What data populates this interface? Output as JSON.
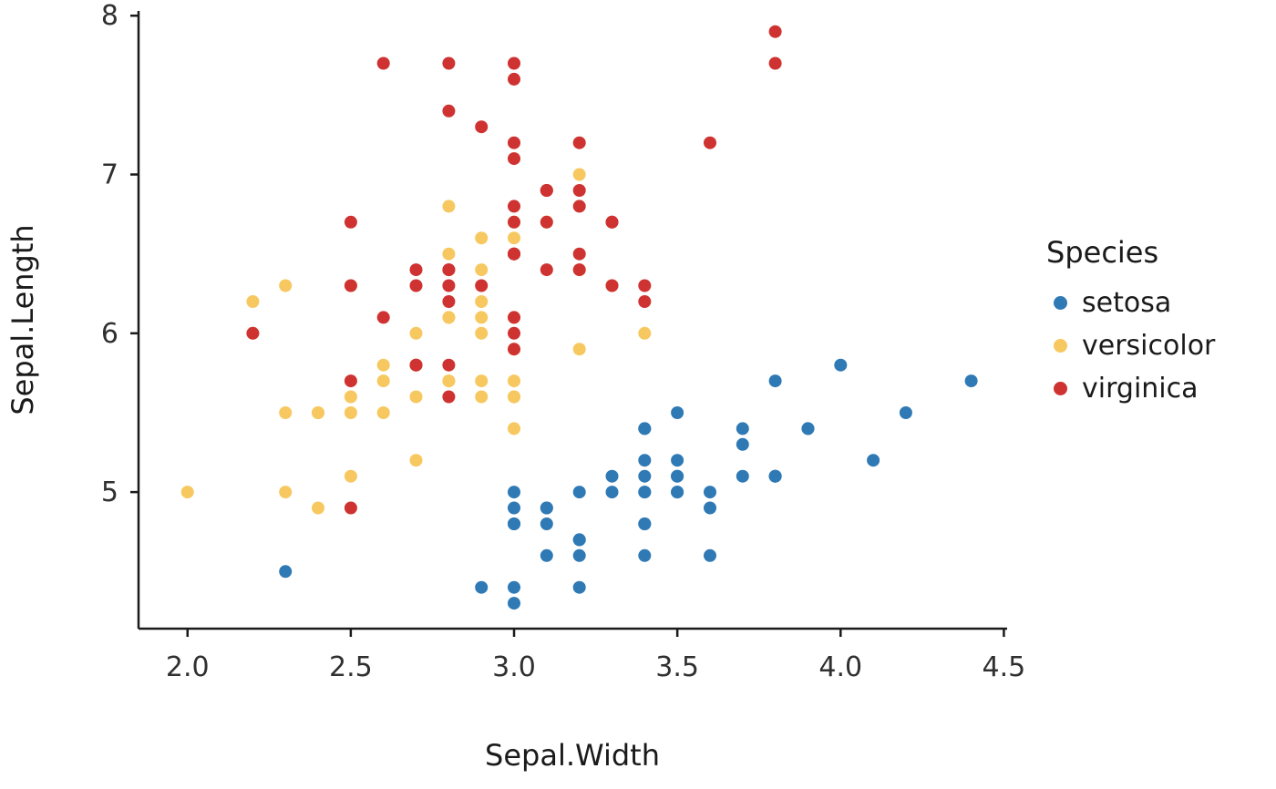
{
  "chart_data": {
    "type": "scatter",
    "title": "",
    "xlabel": "Sepal.Width",
    "ylabel": "Sepal.Length",
    "xlim": [
      1.85,
      4.51
    ],
    "ylim": [
      4.14,
      8.03
    ],
    "grid": false,
    "xticks": {
      "values": [
        2.0,
        2.5,
        3.0,
        3.5,
        4.0,
        4.5
      ],
      "labels": [
        "2.0",
        "2.5",
        "3.0",
        "3.5",
        "4.0",
        "4.5"
      ]
    },
    "yticks": {
      "values": [
        5,
        6,
        7,
        8
      ],
      "labels": [
        "5",
        "6",
        "7",
        "8"
      ]
    },
    "legend": {
      "title": "Species",
      "position": "right"
    },
    "colors": {
      "axis": "#1a1a1a",
      "tick_text": "#303030"
    },
    "series": [
      {
        "name": "setosa",
        "color": "#2F79B5",
        "points": [
          [
            3.5,
            5.1
          ],
          [
            3.0,
            4.9
          ],
          [
            3.2,
            4.7
          ],
          [
            3.1,
            4.6
          ],
          [
            3.6,
            5.0
          ],
          [
            3.9,
            5.4
          ],
          [
            3.4,
            4.6
          ],
          [
            3.4,
            5.0
          ],
          [
            2.9,
            4.4
          ],
          [
            3.1,
            4.9
          ],
          [
            3.7,
            5.4
          ],
          [
            3.4,
            4.8
          ],
          [
            3.0,
            4.8
          ],
          [
            3.0,
            4.3
          ],
          [
            4.0,
            5.8
          ],
          [
            4.4,
            5.7
          ],
          [
            3.9,
            5.4
          ],
          [
            3.5,
            5.1
          ],
          [
            3.8,
            5.7
          ],
          [
            3.8,
            5.1
          ],
          [
            3.4,
            5.4
          ],
          [
            3.7,
            5.1
          ],
          [
            3.6,
            4.6
          ],
          [
            3.3,
            5.1
          ],
          [
            3.4,
            4.8
          ],
          [
            3.0,
            5.0
          ],
          [
            3.4,
            5.0
          ],
          [
            3.5,
            5.2
          ],
          [
            3.4,
            5.2
          ],
          [
            3.2,
            4.7
          ],
          [
            3.1,
            4.8
          ],
          [
            3.4,
            5.4
          ],
          [
            4.1,
            5.2
          ],
          [
            4.2,
            5.5
          ],
          [
            3.1,
            4.9
          ],
          [
            3.2,
            5.0
          ],
          [
            3.5,
            5.5
          ],
          [
            3.6,
            4.9
          ],
          [
            3.0,
            4.4
          ],
          [
            3.4,
            5.1
          ],
          [
            3.5,
            5.0
          ],
          [
            2.3,
            4.5
          ],
          [
            3.2,
            4.4
          ],
          [
            3.5,
            5.0
          ],
          [
            3.8,
            5.1
          ],
          [
            3.0,
            4.8
          ],
          [
            3.8,
            5.1
          ],
          [
            3.2,
            4.6
          ],
          [
            3.7,
            5.3
          ],
          [
            3.3,
            5.0
          ]
        ]
      },
      {
        "name": "versicolor",
        "color": "#F6C85F",
        "points": [
          [
            3.2,
            7.0
          ],
          [
            3.2,
            6.4
          ],
          [
            3.1,
            6.9
          ],
          [
            2.3,
            5.5
          ],
          [
            2.8,
            6.5
          ],
          [
            2.8,
            5.7
          ],
          [
            3.3,
            6.3
          ],
          [
            2.4,
            4.9
          ],
          [
            2.9,
            6.6
          ],
          [
            2.7,
            5.2
          ],
          [
            2.0,
            5.0
          ],
          [
            3.0,
            5.9
          ],
          [
            2.2,
            6.0
          ],
          [
            2.9,
            6.1
          ],
          [
            2.9,
            5.6
          ],
          [
            3.1,
            6.7
          ],
          [
            3.0,
            5.6
          ],
          [
            2.7,
            5.8
          ],
          [
            2.2,
            6.2
          ],
          [
            2.5,
            5.6
          ],
          [
            3.2,
            5.9
          ],
          [
            2.8,
            6.1
          ],
          [
            2.5,
            6.3
          ],
          [
            2.8,
            6.1
          ],
          [
            2.9,
            6.4
          ],
          [
            3.0,
            6.6
          ],
          [
            2.8,
            6.8
          ],
          [
            3.0,
            6.7
          ],
          [
            2.9,
            6.0
          ],
          [
            2.6,
            5.7
          ],
          [
            2.4,
            5.5
          ],
          [
            2.4,
            5.5
          ],
          [
            2.7,
            5.8
          ],
          [
            2.7,
            6.0
          ],
          [
            3.0,
            5.4
          ],
          [
            3.4,
            6.0
          ],
          [
            3.1,
            6.7
          ],
          [
            2.3,
            6.3
          ],
          [
            3.0,
            5.6
          ],
          [
            2.5,
            5.5
          ],
          [
            2.6,
            5.5
          ],
          [
            3.0,
            6.1
          ],
          [
            2.6,
            5.8
          ],
          [
            2.3,
            5.0
          ],
          [
            2.7,
            5.6
          ],
          [
            3.0,
            5.7
          ],
          [
            2.9,
            5.7
          ],
          [
            2.9,
            6.2
          ],
          [
            2.5,
            5.1
          ],
          [
            2.8,
            5.7
          ]
        ]
      },
      {
        "name": "virginica",
        "color": "#CE3231",
        "points": [
          [
            3.3,
            6.3
          ],
          [
            2.7,
            5.8
          ],
          [
            3.0,
            7.1
          ],
          [
            2.9,
            6.3
          ],
          [
            3.0,
            6.5
          ],
          [
            3.0,
            7.6
          ],
          [
            2.5,
            4.9
          ],
          [
            2.9,
            7.3
          ],
          [
            2.5,
            6.7
          ],
          [
            3.6,
            7.2
          ],
          [
            3.2,
            6.5
          ],
          [
            2.7,
            6.4
          ],
          [
            3.0,
            6.8
          ],
          [
            2.5,
            5.7
          ],
          [
            2.8,
            5.8
          ],
          [
            3.2,
            6.4
          ],
          [
            3.0,
            6.5
          ],
          [
            3.8,
            7.7
          ],
          [
            2.6,
            7.7
          ],
          [
            2.2,
            6.0
          ],
          [
            3.2,
            6.9
          ],
          [
            2.8,
            5.6
          ],
          [
            2.8,
            7.7
          ],
          [
            2.7,
            6.3
          ],
          [
            3.3,
            6.7
          ],
          [
            3.2,
            7.2
          ],
          [
            2.8,
            6.2
          ],
          [
            3.0,
            6.1
          ],
          [
            2.8,
            6.4
          ],
          [
            3.0,
            7.2
          ],
          [
            2.8,
            7.4
          ],
          [
            3.8,
            7.9
          ],
          [
            2.8,
            6.4
          ],
          [
            2.8,
            6.3
          ],
          [
            2.6,
            6.1
          ],
          [
            3.0,
            7.7
          ],
          [
            3.4,
            6.3
          ],
          [
            3.1,
            6.4
          ],
          [
            3.0,
            6.0
          ],
          [
            3.1,
            6.9
          ],
          [
            3.1,
            6.7
          ],
          [
            3.1,
            6.9
          ],
          [
            2.7,
            5.8
          ],
          [
            3.2,
            6.8
          ],
          [
            3.3,
            6.7
          ],
          [
            3.0,
            6.7
          ],
          [
            2.5,
            6.3
          ],
          [
            3.0,
            6.5
          ],
          [
            3.4,
            6.2
          ],
          [
            3.0,
            5.9
          ]
        ]
      }
    ]
  }
}
